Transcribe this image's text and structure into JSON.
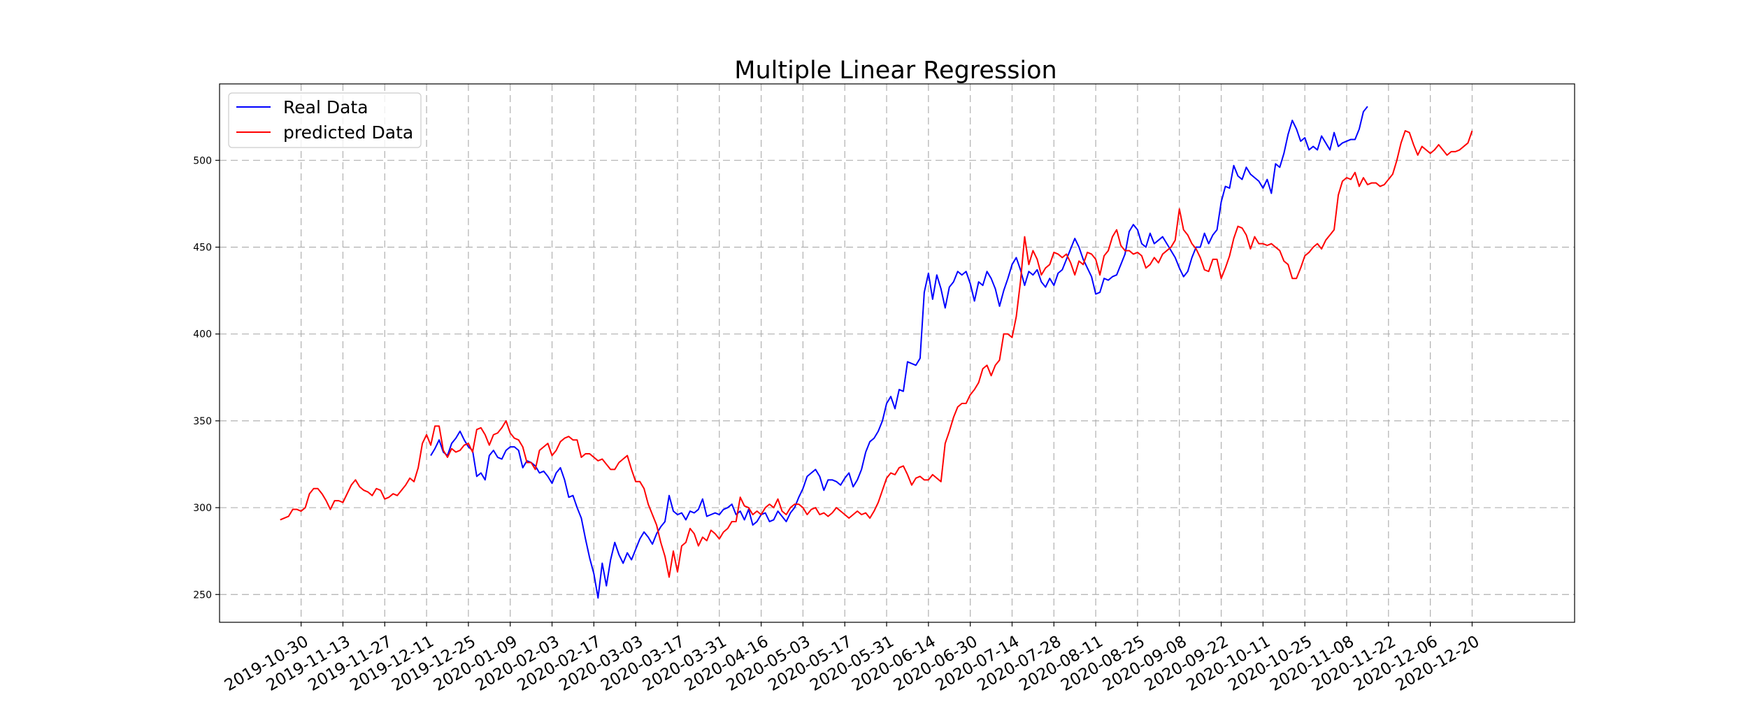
{
  "chart_data": {
    "type": "line",
    "title": "Multiple Linear Regression",
    "xlabel": "",
    "ylabel": "",
    "x_ticks": [
      "2019-10-30",
      "2019-11-13",
      "2019-11-27",
      "2019-12-11",
      "2019-12-25",
      "2020-01-09",
      "2020-02-03",
      "2020-02-17",
      "2020-03-03",
      "2020-03-17",
      "2020-03-31",
      "2020-04-16",
      "2020-05-03",
      "2020-05-17",
      "2020-05-31",
      "2020-06-14",
      "2020-06-30",
      "2020-07-14",
      "2020-07-28",
      "2020-08-11",
      "2020-08-25",
      "2020-09-08",
      "2020-09-22",
      "2020-10-11",
      "2020-10-25",
      "2020-11-08",
      "2020-11-22",
      "2020-12-06",
      "2020-12-20"
    ],
    "x_tick_index": [
      5,
      15,
      25,
      35,
      45,
      55,
      65,
      75,
      85,
      95,
      105,
      115,
      125,
      135,
      145,
      155,
      165,
      175,
      185,
      195,
      205,
      215,
      225,
      235,
      245,
      255,
      265,
      275,
      285
    ],
    "x_range": [
      -14.5,
      309.5
    ],
    "ylim": [
      234,
      544
    ],
    "yticks": [
      250,
      300,
      350,
      400,
      450,
      500
    ],
    "grid": true,
    "legend_position": "upper-left",
    "series": [
      {
        "name": "Real Data",
        "color": "#0000ff",
        "start_index": 36,
        "values": [
          330,
          334,
          339,
          332,
          330,
          337,
          340,
          344,
          339,
          335,
          333,
          318,
          320,
          316,
          330,
          333,
          329,
          328,
          333,
          335,
          335,
          333,
          323,
          327,
          326,
          324,
          320,
          321,
          318,
          314,
          320,
          323,
          316,
          306,
          307,
          300,
          294,
          282,
          271,
          262,
          248,
          268,
          255,
          270,
          280,
          273,
          268,
          274,
          270,
          276,
          282,
          286,
          283,
          279,
          285,
          289,
          292,
          307,
          298,
          296,
          297,
          293,
          298,
          297,
          299,
          305,
          295,
          296,
          297,
          296,
          299,
          300,
          302,
          296,
          298,
          293,
          299,
          290,
          292,
          296,
          297,
          292,
          293,
          298,
          295,
          292,
          297,
          300,
          306,
          311,
          318,
          320,
          322,
          318,
          310,
          316,
          316,
          315,
          313,
          317,
          320,
          312,
          316,
          322,
          332,
          338,
          340,
          344,
          350,
          360,
          364,
          357,
          368,
          367,
          384,
          383,
          382,
          386,
          424,
          435,
          420,
          434,
          426,
          415,
          427,
          430,
          436,
          434,
          436,
          429,
          419,
          430,
          428,
          436,
          432,
          426,
          416,
          425,
          432,
          440,
          444,
          437,
          428,
          436,
          434,
          437,
          430,
          427,
          432,
          428,
          435,
          437,
          443,
          449,
          455,
          450,
          443,
          438,
          433,
          423,
          424,
          432,
          431,
          433,
          434,
          440,
          446,
          459,
          463,
          460,
          452,
          450,
          458,
          452,
          454,
          456,
          452,
          448,
          444,
          438,
          433,
          436,
          444,
          450,
          450,
          458,
          452,
          457,
          460,
          476,
          485,
          484,
          497,
          491,
          489,
          496,
          492,
          490,
          488,
          484,
          489,
          481,
          498,
          496,
          504,
          515,
          523,
          518,
          511,
          513,
          506,
          508,
          506,
          514,
          510,
          506,
          516,
          508,
          510,
          511,
          512,
          512,
          518,
          528,
          531
        ]
      },
      {
        "name": "predicted Data",
        "color": "#ff0000",
        "start_index": 0,
        "values": [
          293,
          294,
          295,
          299,
          299,
          298,
          300,
          308,
          311,
          311,
          308,
          304,
          299,
          304,
          304,
          303,
          308,
          313,
          316,
          312,
          310,
          309,
          307,
          311,
          310,
          305,
          306,
          308,
          307,
          310,
          313,
          317,
          315,
          323,
          337,
          342,
          336,
          347,
          347,
          333,
          329,
          334,
          332,
          333,
          336,
          337,
          332,
          345,
          346,
          342,
          336,
          342,
          343,
          346,
          350,
          343,
          340,
          339,
          335,
          326,
          326,
          322,
          333,
          335,
          337,
          330,
          333,
          338,
          340,
          341,
          339,
          339,
          329,
          331,
          331,
          329,
          327,
          328,
          325,
          322,
          322,
          326,
          328,
          330,
          322,
          315,
          315,
          311,
          302,
          296,
          290,
          280,
          272,
          260,
          275,
          263,
          278,
          280,
          288,
          285,
          278,
          283,
          281,
          287,
          285,
          282,
          286,
          288,
          292,
          292,
          306,
          301,
          300,
          296,
          298,
          296,
          300,
          302,
          300,
          305,
          298,
          296,
          300,
          302,
          302,
          300,
          296,
          299,
          300,
          296,
          297,
          295,
          297,
          300,
          298,
          296,
          294,
          296,
          298,
          296,
          297,
          294,
          298,
          303,
          310,
          317,
          320,
          319,
          323,
          324,
          319,
          313,
          317,
          318,
          316,
          316,
          319,
          317,
          315,
          337,
          344,
          352,
          358,
          360,
          360,
          365,
          368,
          372,
          380,
          382,
          376,
          382,
          385,
          400,
          400,
          398,
          410,
          430,
          456,
          440,
          448,
          443,
          434,
          438,
          440,
          447,
          446,
          444,
          446,
          441,
          434,
          442,
          440,
          447,
          446,
          443,
          434,
          445,
          448,
          456,
          460,
          451,
          448,
          448,
          446,
          447,
          445,
          438,
          440,
          444,
          441,
          446,
          448,
          450,
          454,
          472,
          460,
          457,
          452,
          449,
          444,
          437,
          436,
          443,
          443,
          432,
          438,
          445,
          455,
          462,
          461,
          457,
          449,
          456,
          452,
          452,
          451,
          452,
          450,
          448,
          442,
          440,
          432,
          432,
          438,
          445,
          447,
          450,
          452,
          449,
          454,
          457,
          460,
          480,
          488,
          490,
          489,
          493,
          485,
          490,
          486,
          487,
          487,
          485,
          486,
          489,
          492,
          500,
          510,
          517,
          516,
          509,
          503,
          508,
          506,
          504,
          506,
          509,
          506,
          503,
          505,
          505,
          506,
          508,
          510,
          517
        ]
      }
    ]
  }
}
